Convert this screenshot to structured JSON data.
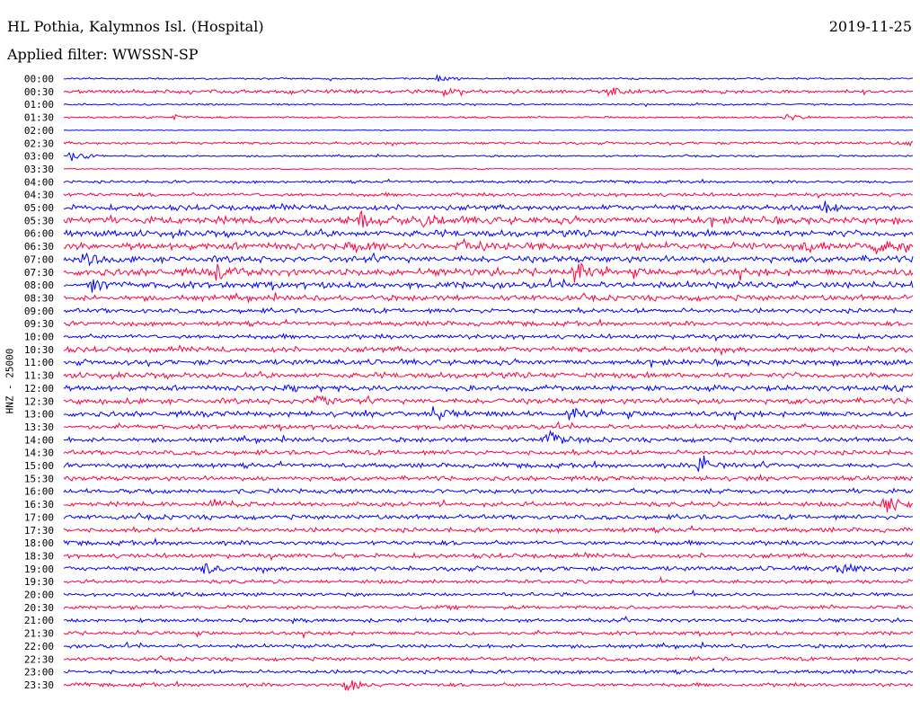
{
  "header": {
    "station": "HL Pothia, Kalymnos Isl. (Hospital)",
    "date": "2019-11-25",
    "filter": "Applied filter: WWSSN-SP"
  },
  "colors": {
    "even_trace": "#0000ff",
    "odd_trace": "#ff0040"
  },
  "chart_data": {
    "type": "line",
    "title": "HL Pothia, Kalymnos Isl. (Hospital)",
    "ylabel": "HNZ - 25000",
    "xlabel": "",
    "grid": false,
    "legend": "none",
    "row_labels": [
      "00:00",
      "00:30",
      "01:00",
      "01:30",
      "02:00",
      "02:30",
      "03:00",
      "03:30",
      "04:00",
      "04:30",
      "05:00",
      "05:30",
      "06:00",
      "06:30",
      "07:00",
      "07:30",
      "08:00",
      "08:30",
      "09:00",
      "09:30",
      "10:00",
      "10:30",
      "11:00",
      "11:30",
      "12:00",
      "12:30",
      "13:00",
      "13:30",
      "14:00",
      "14:30",
      "15:00",
      "15:30",
      "16:00",
      "16:30",
      "17:00",
      "17:30",
      "18:00",
      "18:30",
      "19:00",
      "19:30",
      "20:00",
      "20:30",
      "21:00",
      "21:30",
      "22:00",
      "22:30",
      "23:00",
      "23:30"
    ],
    "noise_level": [
      1,
      2,
      1,
      1,
      0.4,
      1.5,
      1,
      0.6,
      1.5,
      2,
      3,
      4,
      3.5,
      4,
      3.5,
      4,
      3.5,
      3,
      2.5,
      2.5,
      2.5,
      3,
      3,
      3,
      3,
      3,
      3,
      2.5,
      2.5,
      2.5,
      2.5,
      2.5,
      2.5,
      2.5,
      2.5,
      2.5,
      2.5,
      2.5,
      2.5,
      2,
      2,
      2,
      2,
      2,
      2,
      2,
      2,
      2
    ],
    "events": [
      {
        "row": 0,
        "minute": 13.2,
        "amplitude": 5
      },
      {
        "row": 1,
        "minute": 19.2,
        "amplitude": 8
      },
      {
        "row": 1,
        "minute": 13.5,
        "amplitude": 5
      },
      {
        "row": 3,
        "minute": 25.5,
        "amplitude": 4
      },
      {
        "row": 3,
        "minute": 3.9,
        "amplitude": 3
      },
      {
        "row": 5,
        "minute": 29.7,
        "amplitude": 5
      },
      {
        "row": 6,
        "minute": 0.3,
        "amplitude": 7
      },
      {
        "row": 10,
        "minute": 26.8,
        "amplitude": 8
      },
      {
        "row": 11,
        "minute": 10.5,
        "amplitude": 8
      },
      {
        "row": 11,
        "minute": 12.7,
        "amplitude": 8
      },
      {
        "row": 13,
        "minute": 10.5,
        "amplitude": 7
      },
      {
        "row": 13,
        "minute": 14.0,
        "amplitude": 7
      },
      {
        "row": 13,
        "minute": 28.7,
        "amplitude": 9
      },
      {
        "row": 13,
        "minute": 26.2,
        "amplitude": 6
      },
      {
        "row": 14,
        "minute": 0.8,
        "amplitude": 7
      },
      {
        "row": 15,
        "minute": 18.0,
        "amplitude": 14
      },
      {
        "row": 15,
        "minute": 5.4,
        "amplitude": 7
      },
      {
        "row": 16,
        "minute": 1.0,
        "amplitude": 8
      },
      {
        "row": 25,
        "minute": 9.0,
        "amplitude": 9
      },
      {
        "row": 26,
        "minute": 13.1,
        "amplitude": 8
      },
      {
        "row": 26,
        "minute": 17.8,
        "amplitude": 8
      },
      {
        "row": 28,
        "minute": 17.1,
        "amplitude": 16
      },
      {
        "row": 30,
        "minute": 22.5,
        "amplitude": 15
      },
      {
        "row": 33,
        "minute": 29.0,
        "amplitude": 14
      },
      {
        "row": 33,
        "minute": 5.3,
        "amplitude": 8
      },
      {
        "row": 38,
        "minute": 5.0,
        "amplitude": 7
      },
      {
        "row": 38,
        "minute": 27.4,
        "amplitude": 9
      },
      {
        "row": 47,
        "minute": 10.0,
        "amplitude": 10
      }
    ]
  }
}
